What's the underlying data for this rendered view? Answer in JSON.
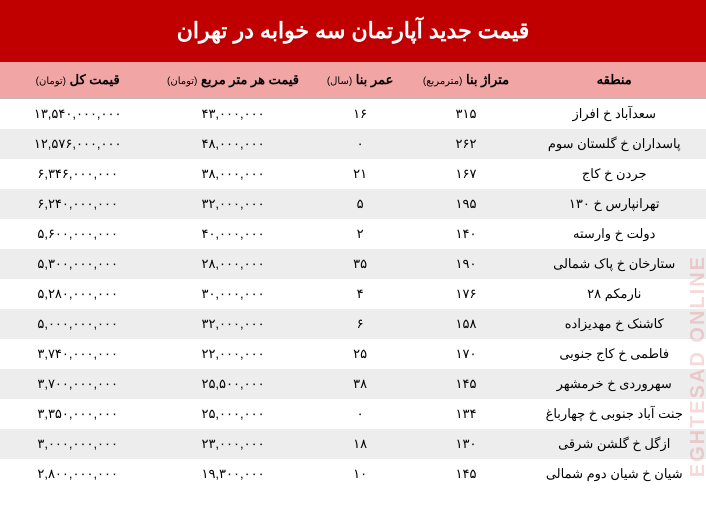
{
  "title": "قیمت جدید آپارتمان سه خوابه در تهران",
  "colors": {
    "header_bg": "#c00000",
    "header_text": "#ffffff",
    "thead_bg": "#f2a5a5",
    "row_even_bg": "#ededed",
    "row_odd_bg": "#ffffff"
  },
  "watermark": "EGHTESAD ONLINE",
  "columns": [
    {
      "key": "region",
      "label": "منطقه",
      "unit": ""
    },
    {
      "key": "area",
      "label": "متراژ بنا",
      "unit": "(مترمربع)"
    },
    {
      "key": "age",
      "label": "عمر بنا",
      "unit": "(سال)"
    },
    {
      "key": "ppm",
      "label": "قیمت هر متر مربع",
      "unit": "(تومان)"
    },
    {
      "key": "total",
      "label": "قیمت کل",
      "unit": "(تومان)"
    }
  ],
  "rows": [
    {
      "region": "سعدآباد خ افراز",
      "area": "۳۱۵",
      "age": "۱۶",
      "ppm": "۴۳,۰۰۰,۰۰۰",
      "total": "۱۳,۵۴۰,۰۰۰,۰۰۰"
    },
    {
      "region": "پاسداران خ گلستان سوم",
      "area": "۲۶۲",
      "age": "۰",
      "ppm": "۴۸,۰۰۰,۰۰۰",
      "total": "۱۲,۵۷۶,۰۰۰,۰۰۰"
    },
    {
      "region": "جردن خ کاج",
      "area": "۱۶۷",
      "age": "۲۱",
      "ppm": "۳۸,۰۰۰,۰۰۰",
      "total": "۶,۳۴۶,۰۰۰,۰۰۰"
    },
    {
      "region": "تهرانپارس خ ۱۳۰",
      "area": "۱۹۵",
      "age": "۵",
      "ppm": "۳۲,۰۰۰,۰۰۰",
      "total": "۶,۲۴۰,۰۰۰,۰۰۰"
    },
    {
      "region": "دولت خ وارسته",
      "area": "۱۴۰",
      "age": "۲",
      "ppm": "۴۰,۰۰۰,۰۰۰",
      "total": "۵,۶۰۰,۰۰۰,۰۰۰"
    },
    {
      "region": "ستارخان خ پاک شمالی",
      "area": "۱۹۰",
      "age": "۳۵",
      "ppm": "۲۸,۰۰۰,۰۰۰",
      "total": "۵,۳۰۰,۰۰۰,۰۰۰"
    },
    {
      "region": "نارمکم ۲۸",
      "area": "۱۷۶",
      "age": "۴",
      "ppm": "۳۰,۰۰۰,۰۰۰",
      "total": "۵,۲۸۰,۰۰۰,۰۰۰"
    },
    {
      "region": "کاشنک خ مهدیزاده",
      "area": "۱۵۸",
      "age": "۶",
      "ppm": "۳۲,۰۰۰,۰۰۰",
      "total": "۵,۰۰۰,۰۰۰,۰۰۰"
    },
    {
      "region": "فاطمی خ کاج جنوبی",
      "area": "۱۷۰",
      "age": "۲۵",
      "ppm": "۲۲,۰۰۰,۰۰۰",
      "total": "۳,۷۴۰,۰۰۰,۰۰۰"
    },
    {
      "region": "سهروردی خ خرمشهر",
      "area": "۱۴۵",
      "age": "۳۸",
      "ppm": "۲۵,۵۰۰,۰۰۰",
      "total": "۳,۷۰۰,۰۰۰,۰۰۰"
    },
    {
      "region": "جنت آباد جنوبی خ چهارباغ",
      "area": "۱۳۴",
      "age": "۰",
      "ppm": "۲۵,۰۰۰,۰۰۰",
      "total": "۳,۳۵۰,۰۰۰,۰۰۰"
    },
    {
      "region": "ازگل خ گلشن شرقی",
      "area": "۱۳۰",
      "age": "۱۸",
      "ppm": "۲۳,۰۰۰,۰۰۰",
      "total": "۳,۰۰۰,۰۰۰,۰۰۰"
    },
    {
      "region": "شیان خ شیان دوم شمالی",
      "area": "۱۴۵",
      "age": "۱۰",
      "ppm": "۱۹,۳۰۰,۰۰۰",
      "total": "۲,۸۰۰,۰۰۰,۰۰۰"
    }
  ]
}
